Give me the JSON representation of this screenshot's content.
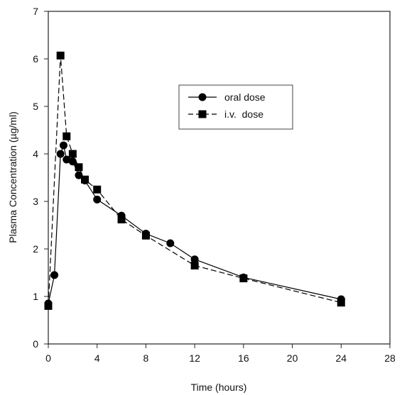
{
  "chart_data": {
    "type": "line",
    "title": "",
    "xlabel": "Time (hours)",
    "ylabel": "Plasma Concentration (µg/ml)",
    "xlim": [
      0,
      28
    ],
    "ylim": [
      0,
      7
    ],
    "xticks": [
      0,
      4,
      8,
      12,
      16,
      20,
      24,
      28
    ],
    "yticks": [
      0,
      1,
      2,
      3,
      4,
      5,
      6,
      7
    ],
    "grid": false,
    "legend_position": "upper-right",
    "series": [
      {
        "name": "oral dose",
        "marker": "circle",
        "line_style": "solid",
        "color": "#000000",
        "x": [
          0,
          0.5,
          1,
          1.25,
          1.5,
          2,
          2.5,
          3,
          4,
          6,
          8,
          10,
          12,
          16,
          24
        ],
        "y": [
          0.85,
          1.45,
          4.0,
          4.18,
          3.88,
          3.84,
          3.55,
          3.44,
          3.04,
          2.7,
          2.32,
          2.12,
          1.78,
          1.4,
          0.94
        ]
      },
      {
        "name": "i.v.  dose",
        "marker": "square",
        "line_style": "dashed",
        "color": "#000000",
        "x": [
          0,
          1,
          1.5,
          2,
          2.5,
          3,
          4,
          6,
          8,
          12,
          16,
          24
        ],
        "y": [
          0.8,
          6.07,
          4.37,
          4.0,
          3.72,
          3.46,
          3.25,
          2.62,
          2.28,
          1.65,
          1.38,
          0.87
        ]
      }
    ]
  }
}
